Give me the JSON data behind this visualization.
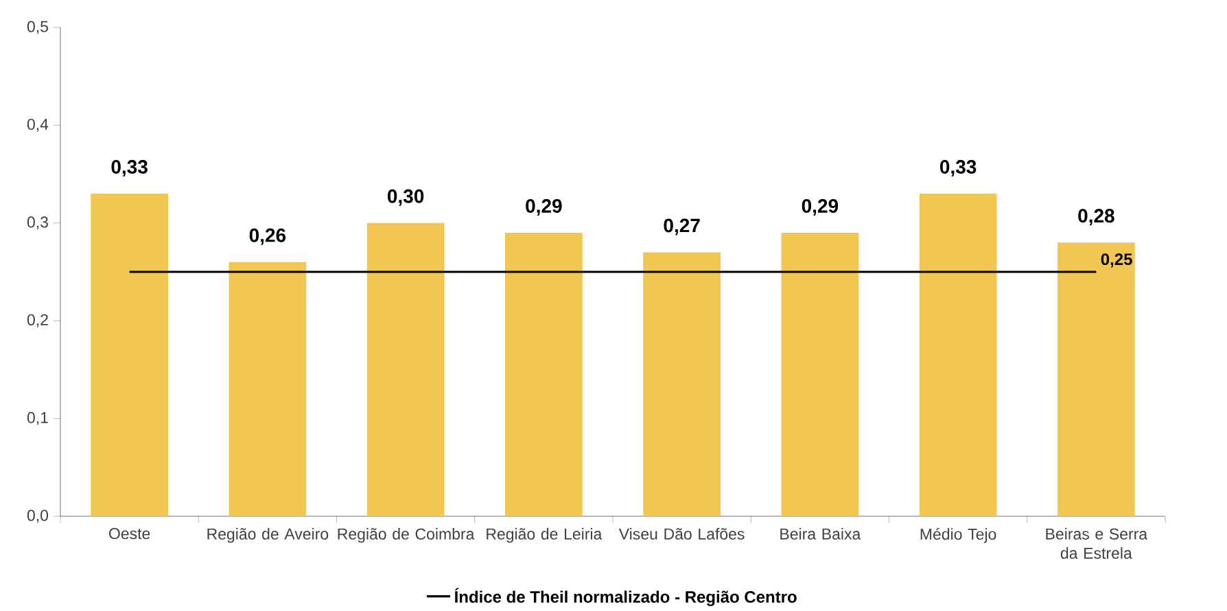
{
  "chart_data": {
    "type": "bar",
    "categories": [
      "Oeste",
      "Região de Aveiro",
      "Região de Coimbra",
      "Região de Leiria",
      "Viseu Dão Lafões",
      "Beira Baixa",
      "Médio Tejo",
      "Beiras e Serra da Estrela"
    ],
    "series": [
      {
        "color": "#f2c751",
        "values": [
          0.33,
          0.26,
          0.3,
          0.29,
          0.27,
          0.29,
          0.33,
          0.28
        ],
        "value_labels": [
          "0,33",
          "0,26",
          "0,30",
          "0,29",
          "0,27",
          "0,29",
          "0,33",
          "0,28"
        ]
      },
      {
        "type": "line",
        "name": "Índice de Theil normalizado - Região Centro",
        "color": "#000000",
        "values": [
          0.25,
          0.25,
          0.25,
          0.25,
          0.25,
          0.25,
          0.25,
          0.25
        ],
        "value_labels": [
          null,
          null,
          null,
          null,
          null,
          null,
          null,
          "0,25"
        ]
      }
    ],
    "ylim": [
      0,
      0.5
    ],
    "yticks": [
      {
        "value": 0,
        "label": "0,0"
      },
      {
        "value": 0.1,
        "label": "0,1"
      },
      {
        "value": 0.2,
        "label": "0,2"
      },
      {
        "value": 0.3,
        "label": "0,3"
      },
      {
        "value": 0.4,
        "label": "0,4"
      },
      {
        "value": 0.5,
        "label": "0,5"
      }
    ],
    "legend": "bottom",
    "grid": false
  }
}
